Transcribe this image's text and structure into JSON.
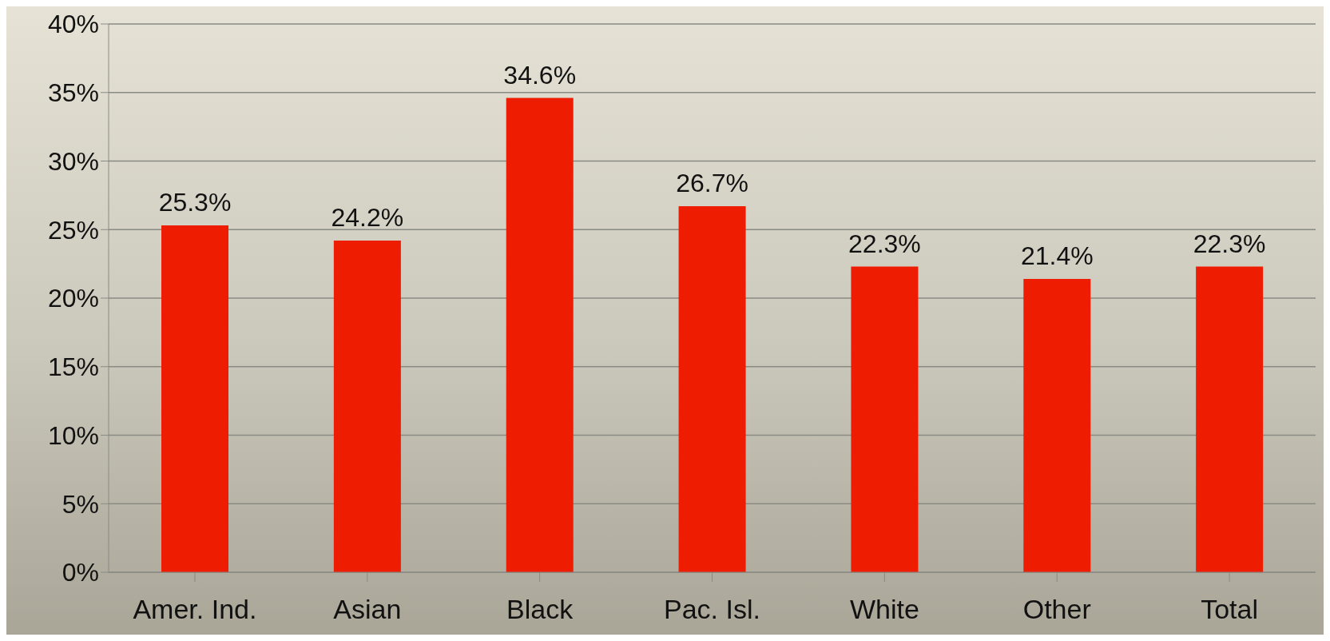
{
  "chart_data": {
    "type": "bar",
    "categories": [
      "Amer. Ind.",
      "Asian",
      "Black",
      "Pac. Isl.",
      "White",
      "Other",
      "Total"
    ],
    "values": [
      25.3,
      24.2,
      34.6,
      26.7,
      22.3,
      21.4,
      22.3
    ],
    "value_labels": [
      "25.3%",
      "24.2%",
      "34.6%",
      "26.7%",
      "22.3%",
      "21.4%",
      "22.3%"
    ],
    "color": "#ee1c00",
    "ylim": [
      0,
      40
    ],
    "yticks": [
      {
        "value": 0,
        "label": "0%"
      },
      {
        "value": 5,
        "label": "5%"
      },
      {
        "value": 10,
        "label": "10%"
      },
      {
        "value": 15,
        "label": "15%"
      },
      {
        "value": 20,
        "label": "20%"
      },
      {
        "value": 25,
        "label": "25%"
      },
      {
        "value": 30,
        "label": "30%"
      },
      {
        "value": 35,
        "label": "35%"
      },
      {
        "value": 40,
        "label": "40%"
      }
    ],
    "grid": "y"
  }
}
